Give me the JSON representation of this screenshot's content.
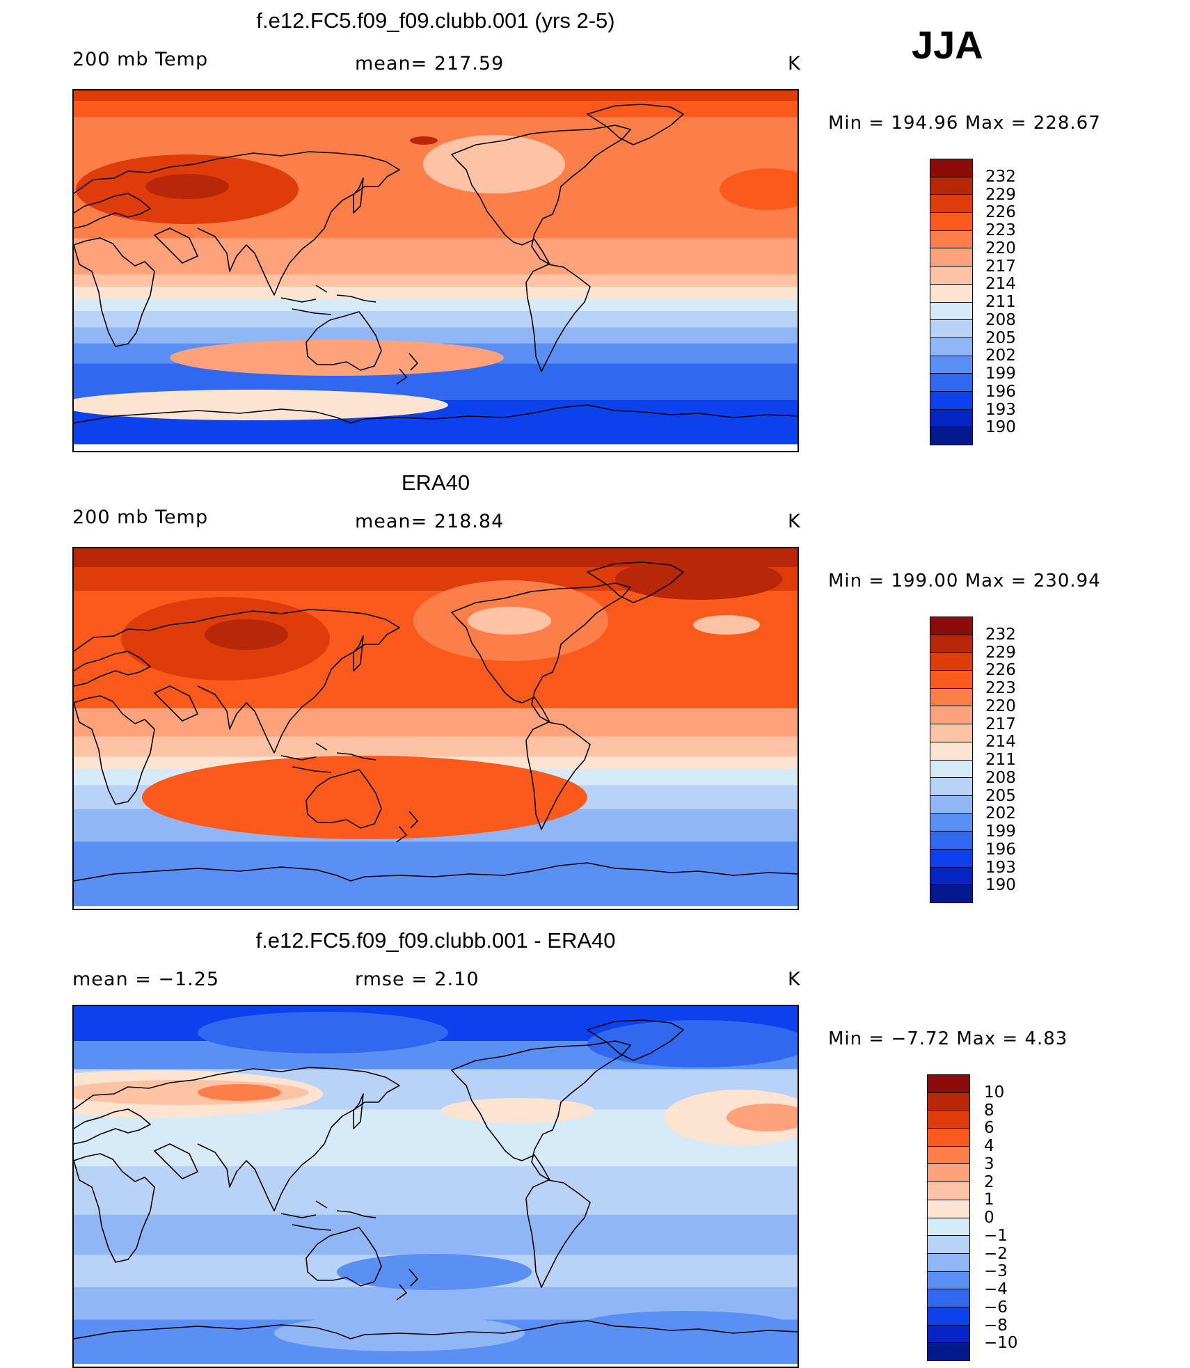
{
  "season": "JJA",
  "colors": {
    "scale_red_to_blue": [
      "#8c0c0c",
      "#b82808",
      "#df3c0c",
      "#fc5a1c",
      "#fc7e48",
      "#fda27a",
      "#fdc3a4",
      "#fde4d0",
      "#d6eaf8",
      "#b9d3f6",
      "#90b6f6",
      "#5a8ff4",
      "#3068f0",
      "#0c42ee",
      "#0526c4",
      "#031a8e"
    ],
    "coastline": "#000000"
  },
  "panels": [
    {
      "title": "f.e12.FC5.f09_f09.clubb.001 (yrs 2-5)",
      "left_label": "200 mb Temp",
      "center_label": "mean= 217.59",
      "units": "K",
      "minmax": "Min = 194.96 Max = 228.67",
      "scale_labels": [
        "232",
        "229",
        "226",
        "223",
        "220",
        "217",
        "214",
        "211",
        "208",
        "205",
        "202",
        "199",
        "196",
        "193",
        "190"
      ],
      "field_type": "model_temperature"
    },
    {
      "title": "ERA40",
      "left_label": "200 mb Temp",
      "center_label": "mean= 218.84",
      "units": "K",
      "minmax": "Min = 199.00 Max = 230.94",
      "scale_labels": [
        "232",
        "229",
        "226",
        "223",
        "220",
        "217",
        "214",
        "211",
        "208",
        "205",
        "202",
        "199",
        "196",
        "193",
        "190"
      ],
      "field_type": "obs_temperature"
    },
    {
      "title": "f.e12.FC5.f09_f09.clubb.001 - ERA40",
      "left_label": "mean =   −1.25",
      "center_label": "rmse =    2.10",
      "units": "K",
      "minmax": "Min =   −7.72 Max =    4.83",
      "scale_labels": [
        "10",
        "8",
        "6",
        "4",
        "3",
        "2",
        "1",
        "0",
        "−1",
        "−2",
        "−3",
        "−4",
        "−6",
        "−8",
        "−10"
      ],
      "field_type": "difference"
    }
  ],
  "chart_data": [
    {
      "type": "heatmap",
      "title": "f.e12.FC5.f09_f09.clubb.001 (yrs 2-5)",
      "variable": "200 mb Temp",
      "units": "K",
      "mean": 217.59,
      "min": 194.96,
      "max": 228.67,
      "levels": [
        190,
        193,
        196,
        199,
        202,
        205,
        208,
        211,
        214,
        217,
        220,
        223,
        226,
        229,
        232
      ],
      "projection": "cylindrical equidistant, centered on Pacific"
    },
    {
      "type": "heatmap",
      "title": "ERA40",
      "variable": "200 mb Temp",
      "units": "K",
      "mean": 218.84,
      "min": 199.0,
      "max": 230.94,
      "levels": [
        190,
        193,
        196,
        199,
        202,
        205,
        208,
        211,
        214,
        217,
        220,
        223,
        226,
        229,
        232
      ]
    },
    {
      "type": "heatmap",
      "title": "f.e12.FC5.f09_f09.clubb.001 - ERA40",
      "units": "K",
      "mean": -1.25,
      "rmse": 2.1,
      "min": -7.72,
      "max": 4.83,
      "levels": [
        -10,
        -8,
        -6,
        -4,
        -3,
        -2,
        -1,
        0,
        1,
        2,
        3,
        4,
        6,
        8,
        10
      ]
    }
  ]
}
